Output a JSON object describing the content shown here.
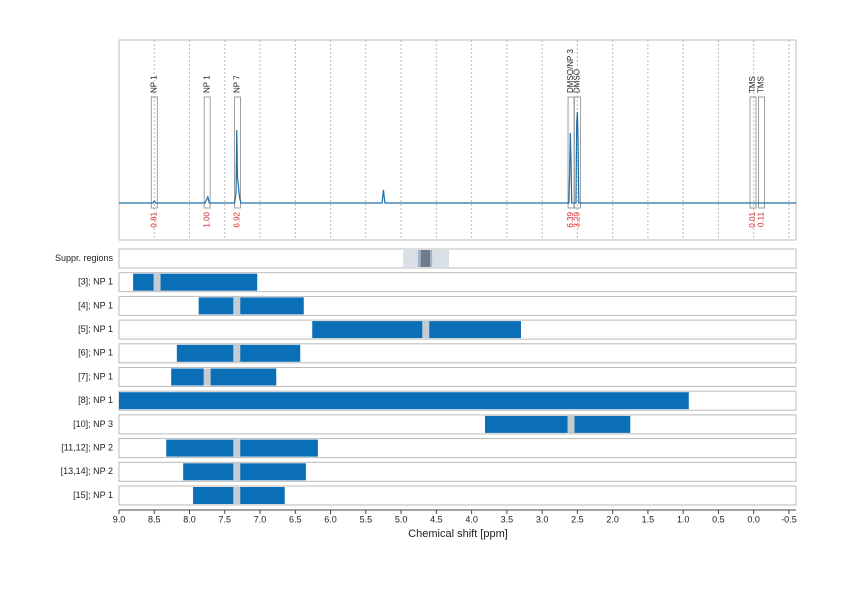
{
  "chart_data": {
    "type": "nmr",
    "xlabel": "Chemical shift [ppm]",
    "xlim": [
      9.0,
      -0.6
    ],
    "xticks": [
      {
        "value": 9,
        "label": "9.0"
      },
      8.5,
      {
        "value": 8,
        "label": "8.0"
      },
      7.5,
      {
        "value": 7,
        "label": "7.0"
      },
      6.5,
      {
        "value": 6,
        "label": "6.0"
      },
      5.5,
      {
        "value": 5,
        "label": "5.0"
      },
      4.5,
      {
        "value": 4,
        "label": "4.0"
      },
      3.5,
      {
        "value": 3,
        "label": "3.0"
      },
      2.5,
      {
        "value": 2,
        "label": "2.0"
      },
      1.5,
      {
        "value": 1,
        "label": "1.0"
      },
      0.5,
      {
        "value": 0,
        "label": "0.0"
      },
      -0.5
    ],
    "grid": true,
    "ylim": [
      -37,
      163
    ],
    "spectrum": {
      "color": "#1f6fa8",
      "x": [
        9.0,
        8.52,
        8.5,
        8.48,
        7.78,
        7.76,
        7.74,
        7.72,
        7.36,
        7.34,
        7.33,
        7.32,
        7.31,
        7.3,
        7.29,
        7.27,
        5.27,
        5.25,
        5.23,
        2.62,
        2.61,
        2.6,
        2.59,
        2.58,
        2.52,
        2.51,
        2.5,
        2.49,
        2.48,
        -0.6
      ],
      "values": [
        0,
        0,
        2,
        0,
        0,
        3,
        6,
        0,
        0,
        10,
        73,
        25,
        20,
        12,
        5,
        0,
        0,
        13,
        0,
        0,
        30,
        70,
        40,
        0,
        0,
        80,
        91,
        60,
        0,
        0
      ]
    },
    "peaks": {
      "labels": [
        "NP 1",
        "NP 1",
        "NP 7",
        "DMSO/NP 3",
        "DMSO",
        "TMS",
        "TMS"
      ],
      "ppm": [
        8.5,
        7.75,
        7.32,
        2.59,
        2.5,
        0.01,
        -0.11
      ],
      "values": [
        0.81,
        1,
        6.92,
        6.39,
        3.29,
        0.01,
        0.11
      ],
      "value_labels": [
        "0.81",
        "1.00",
        "6.92",
        "6.39",
        "3.29",
        "0.01",
        "0.11"
      ],
      "color": "#d62728"
    },
    "suppression": {
      "label": "Suppr. regions",
      "regions": [
        [
          4.97,
          4.32
        ],
        [
          4.76,
          4.56
        ],
        [
          4.72,
          4.59
        ]
      ],
      "colors": [
        "#d8dfe7",
        "#a7b4c2",
        "#6b7d8f"
      ]
    },
    "bar_color": "#0b6fb8",
    "marker_color": "#c3cbd3",
    "rows": [
      {
        "label": "[3]; NP 1",
        "range": [
          8.8,
          7.04
        ],
        "marker": 8.46
      },
      {
        "label": "[4]; NP 1",
        "range": [
          7.87,
          6.38
        ],
        "marker": 7.33
      },
      {
        "label": "[5]; NP 1",
        "range": [
          6.26,
          3.3
        ],
        "marker": 4.65
      },
      {
        "label": "[6]; NP 1",
        "range": [
          8.18,
          6.43
        ],
        "marker": 7.33
      },
      {
        "label": "[7]; NP 1",
        "range": [
          8.26,
          6.77
        ],
        "marker": 7.75
      },
      {
        "label": "[8]; NP 1",
        "range": [
          9.0,
          0.92
        ]
      },
      {
        "label": "[10]; NP 3",
        "range": [
          3.81,
          1.75
        ],
        "marker": 2.59
      },
      {
        "label": "[11,12]; NP 2",
        "range": [
          8.33,
          6.18
        ],
        "marker": 7.33
      },
      {
        "label": "[13,14]; NP 2",
        "range": [
          8.09,
          6.35
        ],
        "marker": 7.33
      },
      {
        "label": "[15]; NP 1",
        "range": [
          7.95,
          6.65
        ],
        "marker": 7.33
      }
    ]
  }
}
